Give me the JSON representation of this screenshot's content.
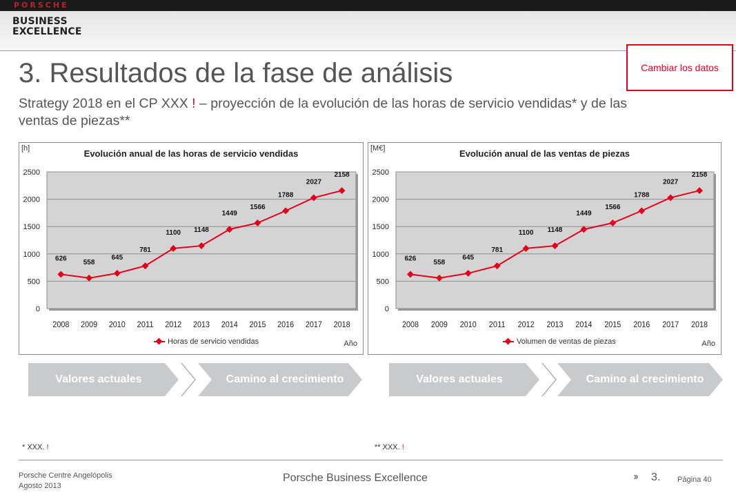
{
  "header": {
    "brand": "PORSCHE",
    "program_line1": "BUSINESS",
    "program_line2": "EXCELLENCE"
  },
  "change_data_button": "Cambiar los datos",
  "title": "3. Resultados de la fase de análisis",
  "subtitle": {
    "part1": "Strategy 2018 en el CP XXX ",
    "mark": "!",
    "part2": " – proyección de la evolución de las horas de servicio vendidas* y de las ventas de piezas**"
  },
  "chart_data": [
    {
      "type": "line",
      "title": "Evolución anual de las horas de servicio vendidas",
      "unit_label": "[h]",
      "xlabel": "Año",
      "ylabel": "",
      "categories": [
        "2008",
        "2009",
        "2010",
        "2011",
        "2012",
        "2013",
        "2014",
        "2015",
        "2016",
        "2017",
        "2018"
      ],
      "series": [
        {
          "name": "Horas de servicio vendidas",
          "values": [
            626,
            558,
            645,
            781,
            1100,
            1148,
            1449,
            1566,
            1788,
            2027,
            2158
          ],
          "color": "#e3001b"
        }
      ],
      "ylim": [
        0,
        2500
      ],
      "yticks": [
        0,
        500,
        1000,
        1500,
        2000,
        2500
      ],
      "grid": true,
      "plot_background": "#d4d4d4",
      "legend_position": "bottom"
    },
    {
      "type": "line",
      "title": "Evolución anual de las ventas de piezas",
      "unit_label": "[M€]",
      "xlabel": "Año",
      "ylabel": "",
      "categories": [
        "2008",
        "2009",
        "2010",
        "2011",
        "2012",
        "2013",
        "2014",
        "2015",
        "2016",
        "2017",
        "2018"
      ],
      "series": [
        {
          "name": "Volumen de ventas de piezas",
          "values": [
            626,
            558,
            645,
            781,
            1100,
            1148,
            1449,
            1566,
            1788,
            2027,
            2158
          ],
          "color": "#e3001b"
        }
      ],
      "ylim": [
        0,
        2500
      ],
      "yticks": [
        0,
        500,
        1000,
        1500,
        2000,
        2500
      ],
      "grid": true,
      "plot_background": "#d4d4d4",
      "legend_position": "bottom"
    }
  ],
  "chevrons": {
    "left": [
      "Valores actuales",
      "Camino al crecimiento"
    ],
    "right": [
      "Valores actuales",
      "Camino al crecimiento"
    ]
  },
  "footnotes": {
    "left": {
      "text": "* XXX. ",
      "mark": "!"
    },
    "right": {
      "text": "** XXX. ",
      "mark": "!"
    }
  },
  "footer": {
    "dealer": "Porsche Centre Angelópolis",
    "date": "Agosto 2013",
    "center": "Porsche Business Excellence",
    "section": "3.",
    "page": "Página 40"
  },
  "colors": {
    "accent": "#e3001b",
    "chevron": "#c8cacc"
  }
}
